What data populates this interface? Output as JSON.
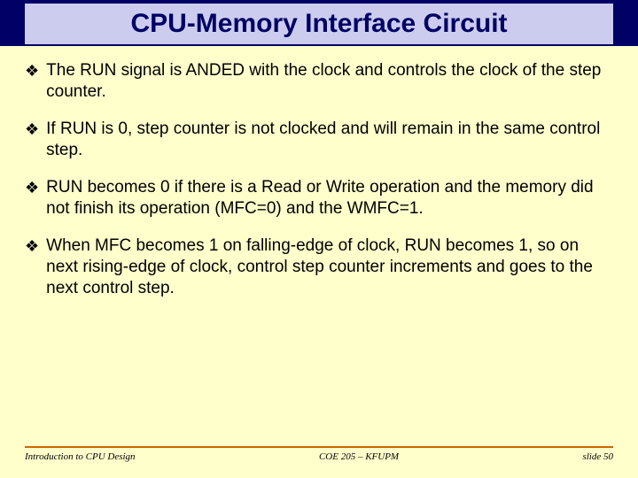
{
  "slide": {
    "title": "CPU-Memory Interface Circuit",
    "bullets": [
      "The RUN signal is ANDED with the clock and controls the clock of the step counter.",
      "If RUN is 0, step counter is not clocked and will remain in the same control step.",
      "RUN becomes 0 if there is a Read or Write operation and the memory did not finish its operation (MFC=0) and the WMFC=1.",
      "When MFC becomes 1 on falling-edge of clock, RUN becomes 1, so on next rising-edge of clock, control step counter increments and goes to the next control step."
    ],
    "footer": {
      "left": "Introduction to CPU Design",
      "center": "COE 205 – KFUPM",
      "right": "slide 50"
    },
    "colors": {
      "background": "#ffffcc",
      "header_bar": "#000066",
      "title_box": "#ccccee",
      "title_text": "#000066",
      "footer_line": "#cc6600"
    }
  }
}
